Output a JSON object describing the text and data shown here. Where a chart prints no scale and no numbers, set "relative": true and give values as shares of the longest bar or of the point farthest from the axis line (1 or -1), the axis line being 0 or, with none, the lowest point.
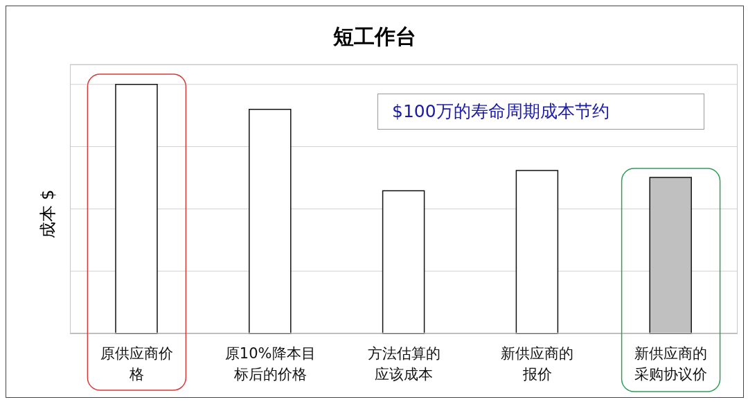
{
  "chart_data": {
    "type": "bar",
    "title": "短工作台",
    "ylabel": "成本 $",
    "categories": [
      "原供应商价格",
      "原10%降本目标后的价格",
      "方法估算的应该成本",
      "新供应商的报价",
      "新供应商的采购协议价"
    ],
    "values": [
      1,
      0.9,
      0.573,
      0.654,
      0.626
    ],
    "colors": [
      "#ffffff",
      "#ffffff",
      "#ffffff",
      "#ffffff",
      "#c0c0c0"
    ],
    "relative": true,
    "grid": "y",
    "annotations": [
      "$100万的寿命周期成本节约"
    ]
  }
}
